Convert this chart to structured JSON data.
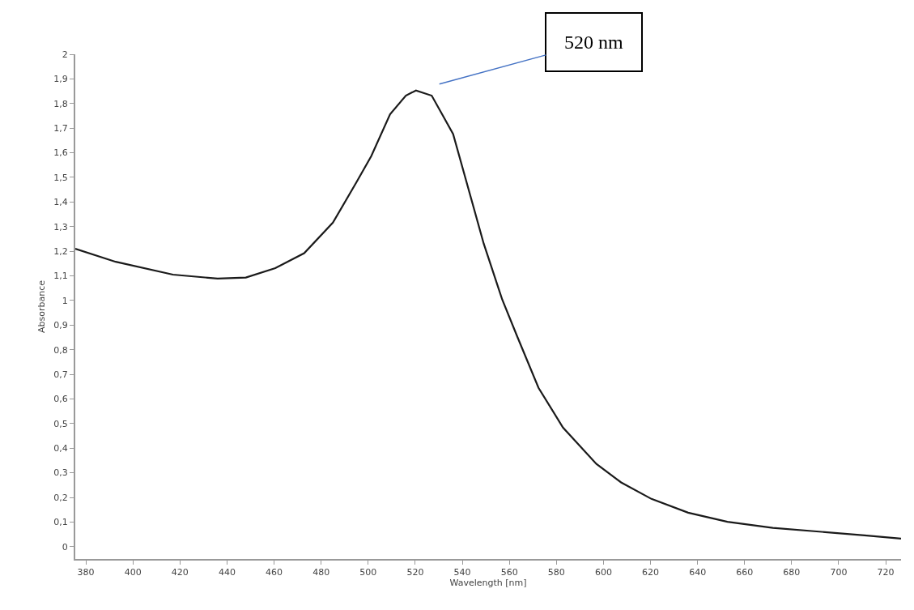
{
  "chart_data": {
    "type": "line",
    "xlabel": "Wavelength [nm]",
    "ylabel": "Absorbance",
    "x": [
      375.5,
      392.7,
      417,
      436,
      448,
      460.5,
      472.8,
      485,
      495,
      501.3,
      509.3,
      516,
      520.3,
      527,
      531.8,
      536.1,
      542.6,
      549.1,
      555.5,
      557,
      563.3,
      572.4,
      582.8,
      597,
      607.5,
      620.4,
      636,
      652.7,
      672,
      691.7,
      711,
      726.5
    ],
    "series": [
      {
        "color": "#1a1a1a",
        "values": [
          1.21,
          1.157,
          1.105,
          1.089,
          1.093,
          1.131,
          1.192,
          1.316,
          1.48,
          1.586,
          1.756,
          1.832,
          1.853,
          1.832,
          1.75,
          1.676,
          1.454,
          1.231,
          1.046,
          1.003,
          0.855,
          0.645,
          0.484,
          0.336,
          0.261,
          0.194,
          0.138,
          0.101,
          0.076,
          0.061,
          0.046,
          0.033
        ]
      }
    ],
    "xlim": [
      375.5,
      726.5
    ],
    "ylim": [
      -0.05,
      2.0
    ],
    "xticks": [
      380,
      400,
      420,
      440,
      460,
      480,
      500,
      520,
      540,
      560,
      580,
      600,
      620,
      640,
      660,
      680,
      700,
      720
    ],
    "yticks": [
      0,
      {
        "value": 0.1,
        "label": "0,1"
      },
      {
        "value": 0.2,
        "label": "0,2"
      },
      {
        "value": 0.3,
        "label": "0,3"
      },
      {
        "value": 0.4,
        "label": "0,4"
      },
      {
        "value": 0.5,
        "label": "0,5"
      },
      {
        "value": 0.6,
        "label": "0,6"
      },
      {
        "value": 0.7,
        "label": "0,7"
      },
      {
        "value": 0.8,
        "label": "0,8"
      },
      {
        "value": 0.9,
        "label": "0,9"
      },
      1,
      {
        "value": 1.1,
        "label": "1,1"
      },
      {
        "value": 1.2,
        "label": "1,2"
      },
      {
        "value": 1.3,
        "label": "1,3"
      },
      {
        "value": 1.4,
        "label": "1,4"
      },
      {
        "value": 1.5,
        "label": "1,5"
      },
      {
        "value": 1.6,
        "label": "1,6"
      },
      {
        "value": 1.7,
        "label": "1,7"
      },
      {
        "value": 1.8,
        "label": "1,8"
      },
      {
        "value": 1.9,
        "label": "1,9"
      },
      2
    ],
    "annotations": [
      {
        "text": "520 nm",
        "x": 520.3,
        "y": 1.853
      }
    ],
    "marker": "none",
    "line_style": "solid"
  }
}
